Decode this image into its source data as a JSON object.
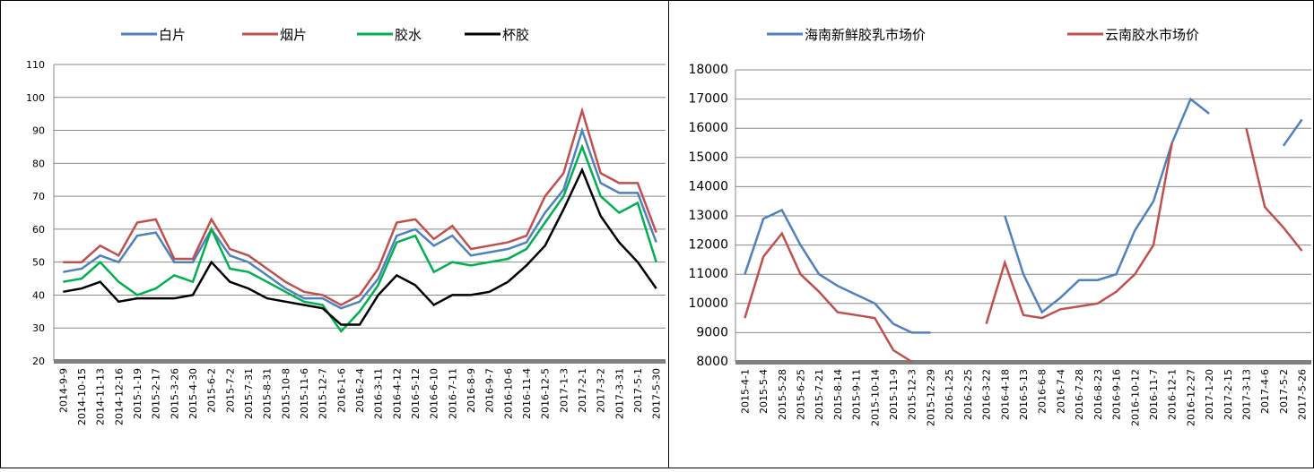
{
  "chart_data": [
    {
      "type": "line",
      "categories": [
        "2014-9-9",
        "2014-10-15",
        "2014-11-13",
        "2014-12-16",
        "2015-1-19",
        "2015-2-17",
        "2015-3-26",
        "2015-4-30",
        "2015-6-2",
        "2015-7-2",
        "2015-7-31",
        "2015-8-31",
        "2015-10-8",
        "2015-11-6",
        "2015-12-7",
        "2016-1-6",
        "2016-2-4",
        "2016-3-11",
        "2016-4-12",
        "2016-5-12",
        "2016-6-10",
        "2016-7-11",
        "2016-8-9",
        "2016-9-7",
        "2016-10-6",
        "2016-11-4",
        "2016-12-5",
        "2017-1-3",
        "2017-2-1",
        "2017-3-2",
        "2017-3-31",
        "2017-5-1",
        "2017-5-30"
      ],
      "series": [
        {
          "name": "白片",
          "color": "#4f81bd",
          "values": [
            47,
            48,
            52,
            50,
            58,
            59,
            50,
            50,
            60,
            52,
            50,
            46,
            42,
            39,
            39,
            36,
            38,
            45,
            58,
            60,
            55,
            58,
            52,
            53,
            54,
            56,
            65,
            72,
            90,
            74,
            71,
            71,
            56
          ]
        },
        {
          "name": "烟片",
          "color": "#c0504d",
          "values": [
            50,
            50,
            55,
            52,
            62,
            63,
            51,
            51,
            63,
            54,
            52,
            48,
            44,
            41,
            40,
            37,
            40,
            48,
            62,
            63,
            57,
            61,
            54,
            55,
            56,
            58,
            70,
            77,
            96,
            77,
            74,
            74,
            59
          ]
        },
        {
          "name": "胶水",
          "color": "#00b050",
          "values": [
            44,
            45,
            50,
            44,
            40,
            42,
            46,
            44,
            60,
            48,
            47,
            44,
            41,
            38,
            37,
            29,
            35,
            43,
            56,
            58,
            47,
            50,
            49,
            50,
            51,
            54,
            62,
            70,
            85,
            70,
            65,
            68,
            50
          ]
        },
        {
          "name": "杯胶",
          "color": "#000000",
          "values": [
            41,
            42,
            44,
            38,
            39,
            39,
            39,
            40,
            50,
            44,
            42,
            39,
            38,
            37,
            36,
            31,
            31,
            40,
            46,
            43,
            37,
            40,
            40,
            41,
            44,
            49,
            55,
            66,
            78,
            64,
            56,
            50,
            42
          ]
        }
      ],
      "ylim": [
        20,
        110
      ],
      "yticks": [
        20,
        30,
        40,
        50,
        60,
        70,
        80,
        90,
        100,
        110
      ],
      "grid": true
    },
    {
      "type": "line",
      "categories": [
        "2015-4-1",
        "2015-5-4",
        "2015-5-28",
        "2015-6-25",
        "2015-7-21",
        "2015-8-14",
        "2015-9-11",
        "2015-10-14",
        "2015-11-9",
        "2015-12-3",
        "2015-12-29",
        "2016-1-25",
        "2016-2-25",
        "2016-3-22",
        "2016-4-18",
        "2016-5-13",
        "2016-6-8",
        "2016-7-4",
        "2016-7-28",
        "2016-8-23",
        "2016-9-16",
        "2016-10-12",
        "2016-11-7",
        "2016-12-1",
        "2016-12-27",
        "2017-1-20",
        "2017-2-15",
        "2017-3-13",
        "2017-4-6",
        "2017-5-2",
        "2017-5-26"
      ],
      "series": [
        {
          "name": "海南新鲜胶乳市场价",
          "color": "#4f81bd",
          "values": [
            11000,
            12900,
            13200,
            12000,
            11000,
            10600,
            10300,
            10000,
            9300,
            9000,
            9000,
            null,
            null,
            null,
            13000,
            11000,
            9700,
            10200,
            10800,
            10800,
            11000,
            12500,
            13500,
            15500,
            17000,
            16500,
            null,
            null,
            null,
            15400,
            16300
          ]
        },
        {
          "name": "云南胶水市场价",
          "color": "#c0504d",
          "values": [
            9500,
            11600,
            12400,
            11000,
            10400,
            9700,
            9600,
            9500,
            8400,
            8000,
            null,
            null,
            null,
            9300,
            11400,
            9600,
            9500,
            9800,
            9900,
            10000,
            10400,
            11000,
            12000,
            15500,
            null,
            null,
            null,
            16000,
            13300,
            12600,
            11800
          ]
        }
      ],
      "ylim": [
        8000,
        18000
      ],
      "yticks": [
        8000,
        9000,
        10000,
        11000,
        12000,
        13000,
        14000,
        15000,
        16000,
        17000,
        18000
      ],
      "grid": true
    }
  ]
}
